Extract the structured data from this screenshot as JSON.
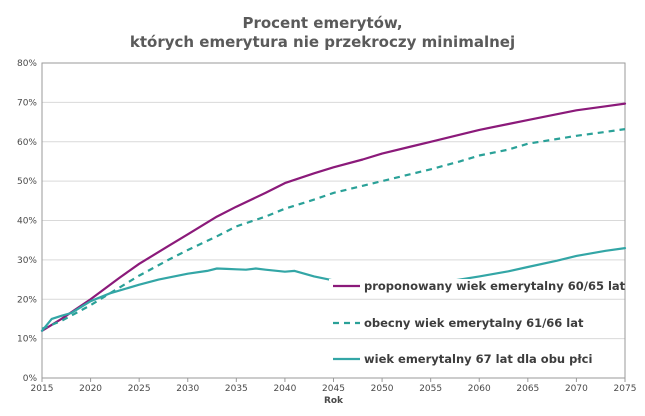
{
  "chart_data": {
    "type": "line",
    "title_line1": "Procent emerytów,",
    "title_line2": "których emerytura nie przekroczy minimalnej",
    "xlabel": "Rok",
    "ylabel": "",
    "xlim": [
      2015,
      2075
    ],
    "ylim": [
      0,
      80
    ],
    "x_ticks": [
      "2015",
      "2020",
      "2025",
      "2030",
      "2035",
      "2040",
      "2045",
      "2050",
      "2055",
      "2060",
      "2065",
      "2070",
      "2075"
    ],
    "y_ticks": [
      "0%",
      "10%",
      "20%",
      "30%",
      "40%",
      "50%",
      "60%",
      "70%",
      "80%"
    ],
    "grid": "horizontal",
    "legend_position": "bottom-right, inside plot",
    "series": [
      {
        "name": "proponowany wiek emerytalny 60/65 lat",
        "color": "#8b1a7a",
        "style": "solid",
        "x": [
          2015,
          2017,
          2020,
          2023,
          2025,
          2028,
          2030,
          2033,
          2035,
          2038,
          2040,
          2043,
          2045,
          2048,
          2050,
          2053,
          2055,
          2058,
          2060,
          2063,
          2065,
          2068,
          2070,
          2073,
          2075
        ],
        "y": [
          12,
          15,
          20,
          25.5,
          29,
          33.5,
          36.5,
          41,
          43.5,
          47,
          49.5,
          52,
          53.5,
          55.5,
          57,
          58.8,
          60,
          61.8,
          63,
          64.5,
          65.5,
          67,
          68,
          69,
          69.7
        ]
      },
      {
        "name": "obecny wiek emerytalny 61/66 lat",
        "color": "#2aa198",
        "style": "dashed",
        "x": [
          2015,
          2017,
          2020,
          2023,
          2025,
          2028,
          2030,
          2033,
          2035,
          2038,
          2040,
          2043,
          2045,
          2048,
          2050,
          2053,
          2055,
          2058,
          2060,
          2063,
          2065,
          2068,
          2070,
          2073,
          2075
        ],
        "y": [
          12.5,
          14.5,
          18.5,
          23,
          26,
          30,
          32.5,
          36,
          38.5,
          41,
          43,
          45.3,
          47,
          48.8,
          50,
          51.8,
          53,
          55,
          56.5,
          58,
          59.5,
          60.7,
          61.5,
          62.5,
          63.2
        ]
      },
      {
        "name": "wiek emerytalny 67 lat dla obu płci",
        "color": "#33a6a6",
        "style": "solid",
        "x": [
          2015,
          2016,
          2017,
          2018,
          2020,
          2022,
          2025,
          2027,
          2030,
          2032,
          2033,
          2034,
          2035,
          2036,
          2037,
          2038,
          2040,
          2041,
          2042,
          2043,
          2045,
          2047,
          2050,
          2052,
          2055,
          2057,
          2060,
          2063,
          2065,
          2068,
          2070,
          2073,
          2075
        ],
        "y": [
          12,
          15,
          15.8,
          16.5,
          19.5,
          21.5,
          23.7,
          25,
          26.5,
          27.2,
          27.8,
          27.7,
          27.6,
          27.5,
          27.8,
          27.5,
          27.0,
          27.2,
          26.5,
          25.8,
          24.8,
          24.1,
          23.6,
          23.5,
          23.9,
          24.6,
          25.8,
          27.1,
          28.2,
          29.8,
          31.0,
          32.3,
          33.0
        ]
      }
    ]
  }
}
